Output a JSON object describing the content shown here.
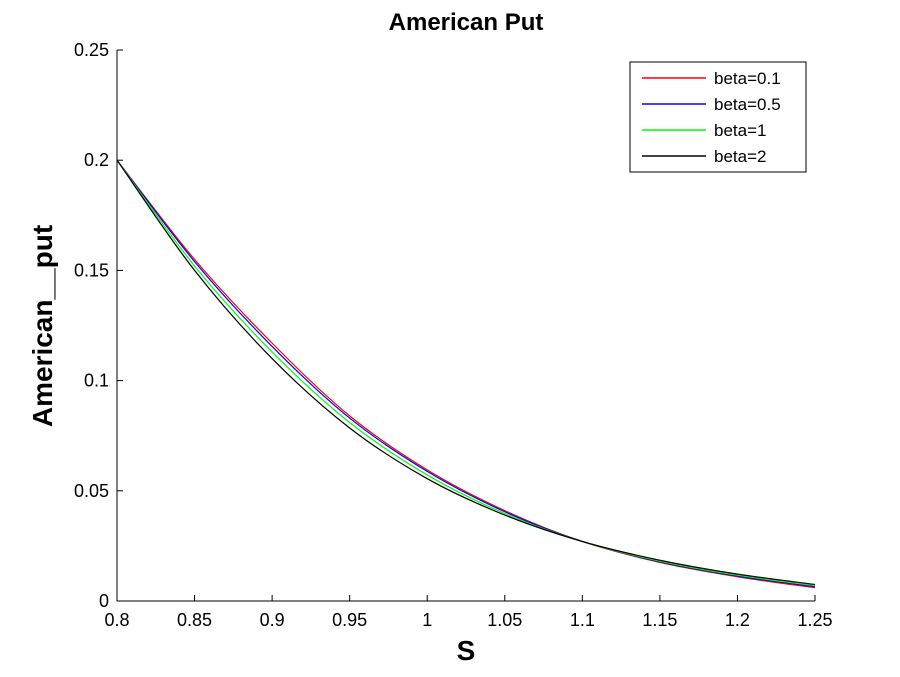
{
  "chart_data": {
    "type": "line",
    "title": "American Put",
    "xlabel": "S",
    "ylabel": "American__put",
    "xlim": [
      0.8,
      1.25
    ],
    "ylim": [
      0,
      0.25
    ],
    "xticks": [
      "0.8",
      "0.85",
      "0.9",
      "0.95",
      "1",
      "1.05",
      "1.1",
      "1.15",
      "1.2",
      "1.25"
    ],
    "yticks": [
      "0",
      "0.05",
      "0.1",
      "0.15",
      "0.2",
      "0.25"
    ],
    "grid": false,
    "legend_position": "top-right",
    "x": [
      0.8,
      0.85,
      0.9,
      0.95,
      1.0,
      1.05,
      1.1,
      1.15,
      1.2,
      1.25
    ],
    "series": [
      {
        "name": "beta=0.1",
        "color": "#ff0000",
        "values": [
          0.2,
          0.155,
          0.117,
          0.084,
          0.0595,
          0.041,
          0.027,
          0.0175,
          0.011,
          0.006
        ]
      },
      {
        "name": "beta=0.5",
        "color": "#0000ff",
        "values": [
          0.2,
          0.154,
          0.1155,
          0.083,
          0.0588,
          0.0405,
          0.027,
          0.0178,
          0.0113,
          0.0065
        ]
      },
      {
        "name": "beta=1",
        "color": "#00ff00",
        "values": [
          0.2,
          0.152,
          0.113,
          0.081,
          0.0572,
          0.0397,
          0.027,
          0.0181,
          0.0117,
          0.007
        ]
      },
      {
        "name": "beta=2",
        "color": "#000000",
        "values": [
          0.2,
          0.15,
          0.11,
          0.0785,
          0.0555,
          0.039,
          0.027,
          0.0185,
          0.0122,
          0.0075
        ]
      }
    ]
  }
}
